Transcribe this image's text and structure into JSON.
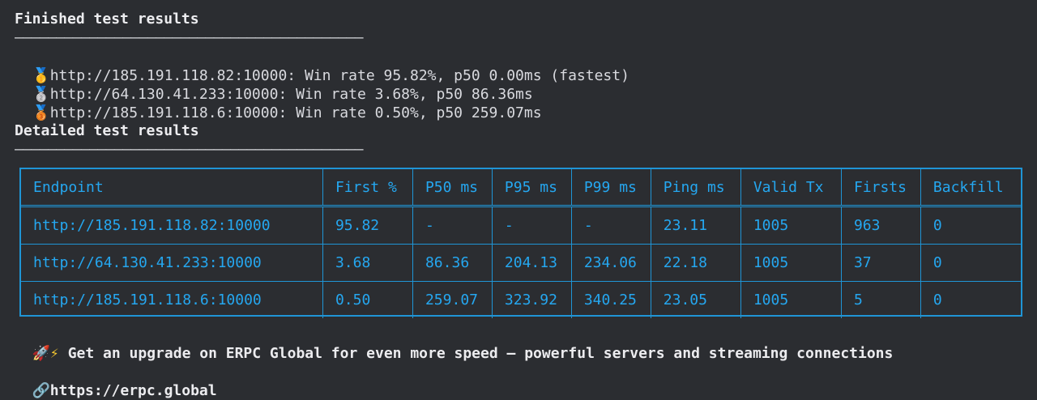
{
  "finished": {
    "title": "Finished test results",
    "rule": "——————————————————————————————————————————",
    "results": [
      {
        "medal": "🥇",
        "text": "http://185.191.118.82:10000: Win rate 95.82%, p50 0.00ms (fastest)"
      },
      {
        "medal": "🥈",
        "text": "http://64.130.41.233:10000: Win rate 3.68%, p50 86.36ms"
      },
      {
        "medal": "🥉",
        "text": "http://185.191.118.6:10000: Win rate 0.50%, p50 259.07ms"
      }
    ]
  },
  "detailed": {
    "title": "Detailed test results",
    "rule": "——————————————————————————————————————————",
    "columns": [
      "Endpoint",
      "First %",
      "P50 ms",
      "P95 ms",
      "P99 ms",
      "Ping ms",
      "Valid Tx",
      "Firsts",
      "Backfill"
    ],
    "rows": [
      [
        "http://185.191.118.82:10000",
        "95.82",
        "-",
        "-",
        "-",
        "23.11",
        "1005",
        "963",
        "0"
      ],
      [
        "http://64.130.41.233:10000",
        "3.68",
        "86.36",
        "204.13",
        "234.06",
        "22.18",
        "1005",
        "37",
        "0"
      ],
      [
        "http://185.191.118.6:10000",
        "0.50",
        "259.07",
        "323.92",
        "340.25",
        "23.05",
        "1005",
        "5",
        "0"
      ]
    ]
  },
  "promo": {
    "rocket": "🚀",
    "bolt": "⚡",
    "text": "Get an upgrade on ERPC Global for even more speed — powerful servers and streaming connections"
  },
  "link": {
    "icon": "🔗",
    "url": "https://erpc.global"
  },
  "colors": {
    "background": "#2b2d31",
    "text": "#d9dadf",
    "table_accent": "#1f95d6",
    "table_text": "#25a7f0"
  }
}
